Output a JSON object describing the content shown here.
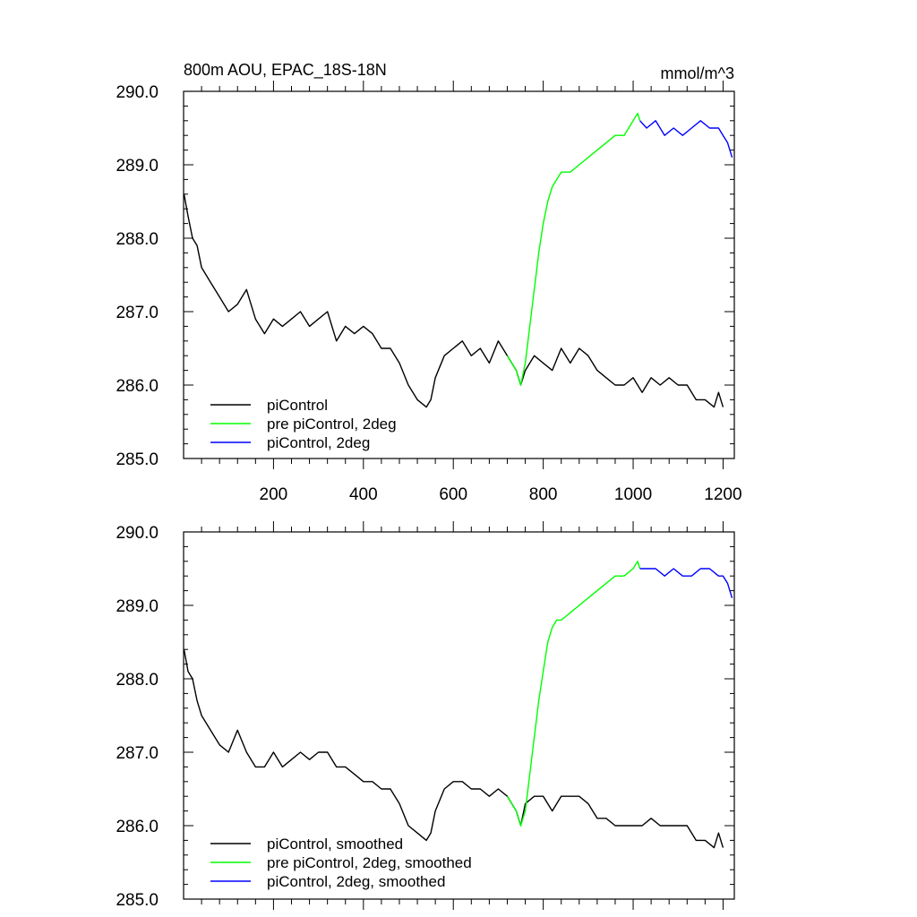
{
  "chart_data": [
    {
      "type": "line",
      "title": "800m AOU, EPAC_18S-18N",
      "units": "mmol/m^3",
      "xlim": [
        0,
        1225
      ],
      "ylim": [
        285.0,
        290.0
      ],
      "xticks": [
        200,
        400,
        600,
        800,
        1000,
        1200
      ],
      "yticks": [
        "285.0",
        "286.0",
        "287.0",
        "288.0",
        "289.0",
        "290.0"
      ],
      "grid": false,
      "legend_position": "bottom-left",
      "series": [
        {
          "name": "piControl",
          "color": "#000000",
          "x": [
            1,
            10,
            20,
            30,
            40,
            60,
            80,
            100,
            120,
            140,
            160,
            180,
            200,
            220,
            240,
            260,
            280,
            300,
            320,
            340,
            360,
            380,
            400,
            420,
            440,
            460,
            480,
            500,
            520,
            540,
            550,
            560,
            580,
            600,
            620,
            640,
            660,
            680,
            700,
            720,
            740,
            750,
            760,
            780,
            800,
            820,
            840,
            860,
            880,
            900,
            920,
            940,
            960,
            980,
            1000,
            1020,
            1040,
            1060,
            1080,
            1100,
            1120,
            1140,
            1160,
            1180,
            1190,
            1200
          ],
          "y": [
            288.6,
            288.3,
            288.0,
            287.9,
            287.6,
            287.4,
            287.2,
            287.0,
            287.1,
            287.3,
            286.9,
            286.7,
            286.9,
            286.8,
            286.9,
            287.0,
            286.8,
            286.9,
            287.0,
            286.6,
            286.8,
            286.7,
            286.8,
            286.7,
            286.5,
            286.5,
            286.3,
            286.0,
            285.8,
            285.7,
            285.8,
            286.1,
            286.4,
            286.5,
            286.6,
            286.4,
            286.5,
            286.3,
            286.6,
            286.4,
            286.2,
            286.0,
            286.2,
            286.4,
            286.3,
            286.2,
            286.5,
            286.3,
            286.5,
            286.4,
            286.2,
            286.1,
            286.0,
            286.0,
            286.1,
            285.9,
            286.1,
            286.0,
            286.1,
            286.0,
            286.0,
            285.8,
            285.8,
            285.7,
            285.9,
            285.7
          ]
        },
        {
          "name": "pre piControl, 2deg",
          "color": "#00ff00",
          "x": [
            720,
            730,
            740,
            750,
            760,
            770,
            780,
            790,
            800,
            810,
            820,
            830,
            840,
            860,
            880,
            900,
            920,
            940,
            960,
            980,
            1000,
            1010,
            1015
          ],
          "y": [
            286.4,
            286.3,
            286.2,
            286.0,
            286.3,
            286.8,
            287.3,
            287.8,
            288.2,
            288.5,
            288.7,
            288.8,
            288.9,
            288.9,
            289.0,
            289.1,
            289.2,
            289.3,
            289.4,
            289.4,
            289.6,
            289.7,
            289.6
          ]
        },
        {
          "name": "piControl, 2deg",
          "color": "#0000ff",
          "x": [
            1015,
            1030,
            1050,
            1070,
            1090,
            1110,
            1130,
            1150,
            1170,
            1190,
            1200,
            1210,
            1220
          ],
          "y": [
            289.6,
            289.5,
            289.6,
            289.4,
            289.5,
            289.4,
            289.5,
            289.6,
            289.5,
            289.5,
            289.4,
            289.3,
            289.1
          ]
        }
      ]
    },
    {
      "type": "line",
      "xlim": [
        0,
        1225
      ],
      "ylim": [
        285.0,
        290.0
      ],
      "yticks": [
        "285.0",
        "286.0",
        "287.0",
        "288.0",
        "289.0",
        "290.0"
      ],
      "grid": false,
      "legend_position": "bottom-left",
      "series": [
        {
          "name": "piControl, smoothed",
          "color": "#000000",
          "x": [
            1,
            10,
            20,
            30,
            40,
            60,
            80,
            100,
            120,
            140,
            160,
            180,
            200,
            220,
            240,
            260,
            280,
            300,
            320,
            340,
            360,
            380,
            400,
            420,
            440,
            460,
            480,
            500,
            520,
            540,
            550,
            560,
            580,
            600,
            620,
            640,
            660,
            680,
            700,
            720,
            740,
            750,
            760,
            780,
            800,
            820,
            840,
            860,
            880,
            900,
            920,
            940,
            960,
            980,
            1000,
            1020,
            1040,
            1060,
            1080,
            1100,
            1120,
            1140,
            1160,
            1180,
            1190,
            1200
          ],
          "y": [
            288.4,
            288.1,
            288.0,
            287.7,
            287.5,
            287.3,
            287.1,
            287.0,
            287.3,
            287.0,
            286.8,
            286.8,
            287.0,
            286.8,
            286.9,
            287.0,
            286.9,
            287.0,
            287.0,
            286.8,
            286.8,
            286.7,
            286.6,
            286.6,
            286.5,
            286.5,
            286.3,
            286.0,
            285.9,
            285.8,
            285.9,
            286.2,
            286.5,
            286.6,
            286.6,
            286.5,
            286.5,
            286.4,
            286.5,
            286.4,
            286.2,
            286.0,
            286.3,
            286.4,
            286.4,
            286.2,
            286.4,
            286.4,
            286.4,
            286.3,
            286.1,
            286.1,
            286.0,
            286.0,
            286.0,
            286.0,
            286.1,
            286.0,
            286.0,
            286.0,
            286.0,
            285.8,
            285.8,
            285.7,
            285.9,
            285.7
          ]
        },
        {
          "name": "pre piControl, 2deg, smoothed",
          "color": "#00ff00",
          "x": [
            720,
            730,
            740,
            750,
            760,
            770,
            780,
            790,
            800,
            810,
            820,
            830,
            840,
            860,
            880,
            900,
            920,
            940,
            960,
            980,
            1000,
            1010,
            1015
          ],
          "y": [
            286.4,
            286.3,
            286.2,
            286.0,
            286.2,
            286.7,
            287.2,
            287.7,
            288.1,
            288.5,
            288.7,
            288.8,
            288.8,
            288.9,
            289.0,
            289.1,
            289.2,
            289.3,
            289.4,
            289.4,
            289.5,
            289.6,
            289.5
          ]
        },
        {
          "name": "piControl, 2deg, smoothed",
          "color": "#0000ff",
          "x": [
            1015,
            1030,
            1050,
            1070,
            1090,
            1110,
            1130,
            1150,
            1170,
            1190,
            1200,
            1210,
            1220
          ],
          "y": [
            289.5,
            289.5,
            289.5,
            289.4,
            289.5,
            289.4,
            289.4,
            289.5,
            289.5,
            289.4,
            289.4,
            289.3,
            289.1
          ]
        }
      ]
    }
  ]
}
